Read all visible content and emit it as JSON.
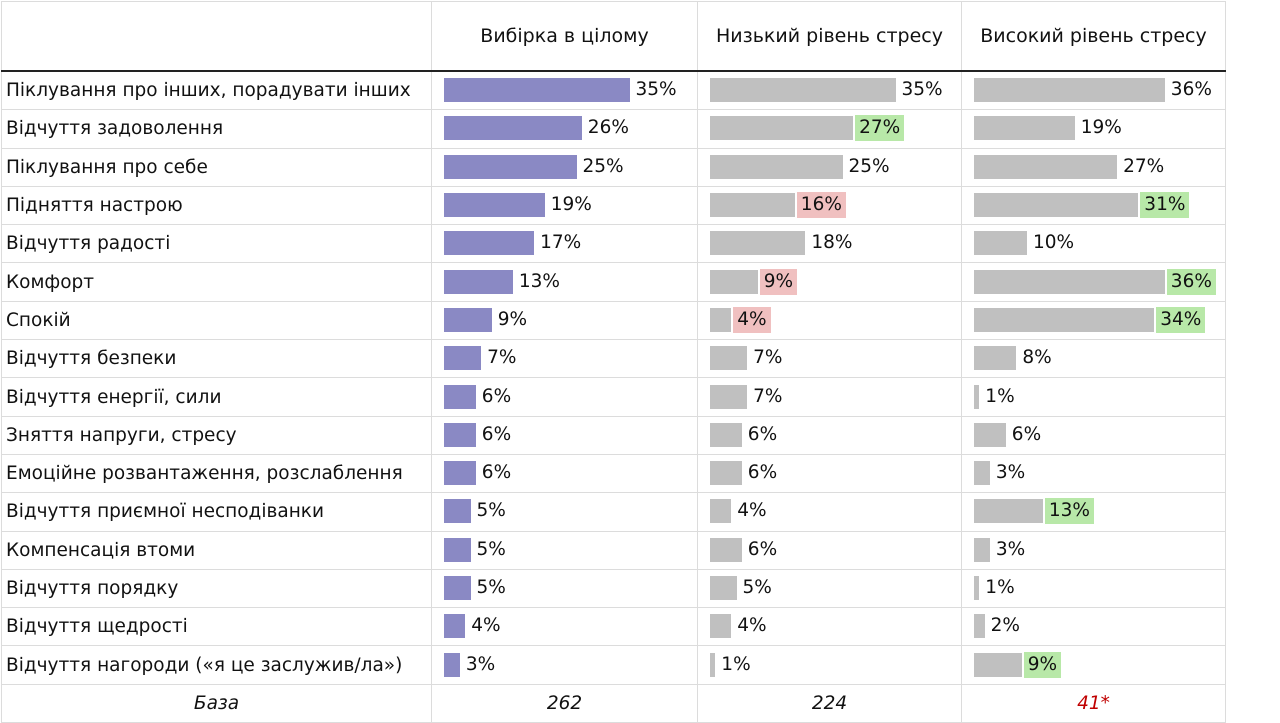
{
  "columns": [
    "",
    "Вибірка в цілому",
    "Низький рівень стресу",
    "Високий рівень стресу"
  ],
  "colors": {
    "total_bar": "#8a89c4",
    "group_bar": "#c0c0c0",
    "higher": "#b8e8a8",
    "lower": "#f0c0c0",
    "low_base": "#c00000"
  },
  "chart_data": {
    "type": "bar",
    "orientation": "horizontal",
    "categories": [
      "Піклування про інших, порадувати інших",
      "Відчуття задоволення",
      "Піклування про себе",
      "Підняття настрою",
      "Відчуття радості",
      "Комфорт",
      "Спокій",
      "Відчуття безпеки",
      "Відчуття енергії, сили",
      "Зняття напруги, стресу",
      "Емоційне розвантаження, розслаблення",
      "Відчуття приємної несподіванки",
      "Компенсація втоми",
      "Відчуття порядку",
      "Відчуття щедрості",
      "Відчуття нагороди («я це заслужив/ла»)"
    ],
    "series": [
      {
        "name": "Вибірка в цілому",
        "values": [
          35,
          26,
          25,
          19,
          17,
          13,
          9,
          7,
          6,
          6,
          6,
          5,
          5,
          5,
          4,
          3
        ],
        "highlight": [
          null,
          null,
          null,
          null,
          null,
          null,
          null,
          null,
          null,
          null,
          null,
          null,
          null,
          null,
          null,
          null
        ]
      },
      {
        "name": "Низький рівень стресу",
        "values": [
          35,
          27,
          25,
          16,
          18,
          9,
          4,
          7,
          7,
          6,
          6,
          4,
          6,
          5,
          4,
          1
        ],
        "highlight": [
          null,
          "higher",
          null,
          "lower",
          null,
          "lower",
          "lower",
          null,
          null,
          null,
          null,
          null,
          null,
          null,
          null,
          null
        ]
      },
      {
        "name": "Високий рівень стресу",
        "values": [
          36,
          19,
          27,
          31,
          10,
          36,
          34,
          8,
          1,
          6,
          3,
          13,
          3,
          1,
          2,
          9
        ],
        "highlight": [
          null,
          null,
          null,
          "higher",
          null,
          "higher",
          "higher",
          null,
          null,
          null,
          null,
          "higher",
          null,
          null,
          null,
          "higher"
        ]
      }
    ],
    "unit": "%",
    "xlim": [
      0,
      36
    ]
  },
  "base": {
    "label": "База",
    "values": [
      "262",
      "224",
      "41*"
    ]
  }
}
